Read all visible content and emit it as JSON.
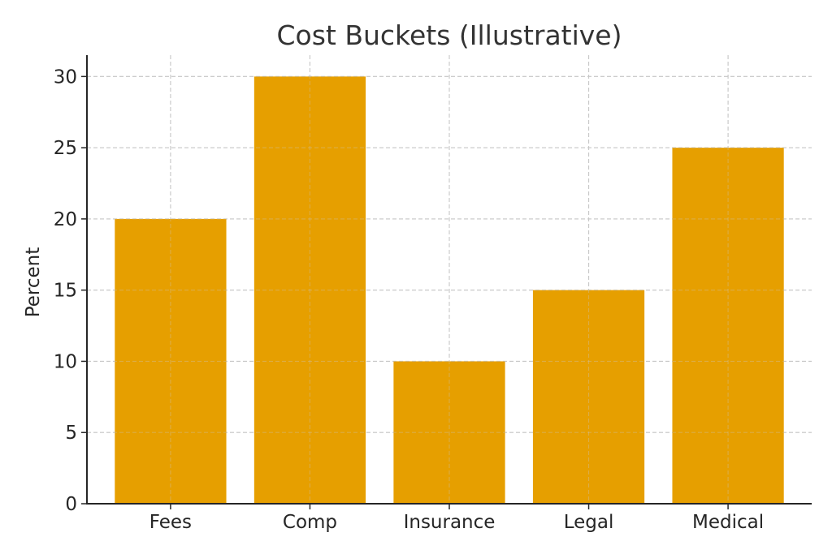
{
  "chart_data": {
    "type": "bar",
    "title": "Cost Buckets (Illustrative)",
    "xlabel": "",
    "ylabel": "Percent",
    "categories": [
      "Fees",
      "Comp",
      "Insurance",
      "Legal",
      "Medical"
    ],
    "values": [
      20,
      30,
      10,
      15,
      25
    ],
    "ylim": [
      0,
      31.5
    ],
    "yticks": [
      0,
      5,
      10,
      15,
      20,
      25,
      30
    ],
    "grid": true,
    "grid_style": "dashed",
    "legend": null,
    "bar_color": "#E69F00"
  },
  "colors": {
    "bar": "#E69F00",
    "grid": "#c8c8c8",
    "axis": "#262626",
    "title": "#333333"
  }
}
